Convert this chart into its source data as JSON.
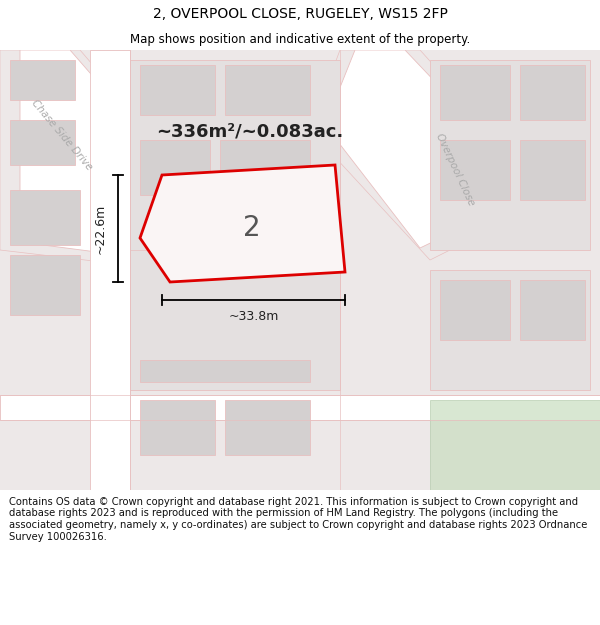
{
  "title": "2, OVERPOOL CLOSE, RUGELEY, WS15 2FP",
  "subtitle": "Map shows position and indicative extent of the property.",
  "footer": "Contains OS data © Crown copyright and database right 2021. This information is subject to Crown copyright and database rights 2023 and is reproduced with the permission of HM Land Registry. The polygons (including the associated geometry, namely x, y co-ordinates) are subject to Crown copyright and database rights 2023 Ordnance Survey 100026316.",
  "area_text": "~336m²/~0.083ac.",
  "width_label": "~33.8m",
  "height_label": "~22.6m",
  "plot_number": "2",
  "map_bg": "#f0ecec",
  "building_color": "#d4d0d0",
  "plot_outline_color": "#dd0000",
  "road_line_color": "#e8c0c0",
  "title_fontsize": 10,
  "subtitle_fontsize": 8.5,
  "footer_fontsize": 7.2
}
